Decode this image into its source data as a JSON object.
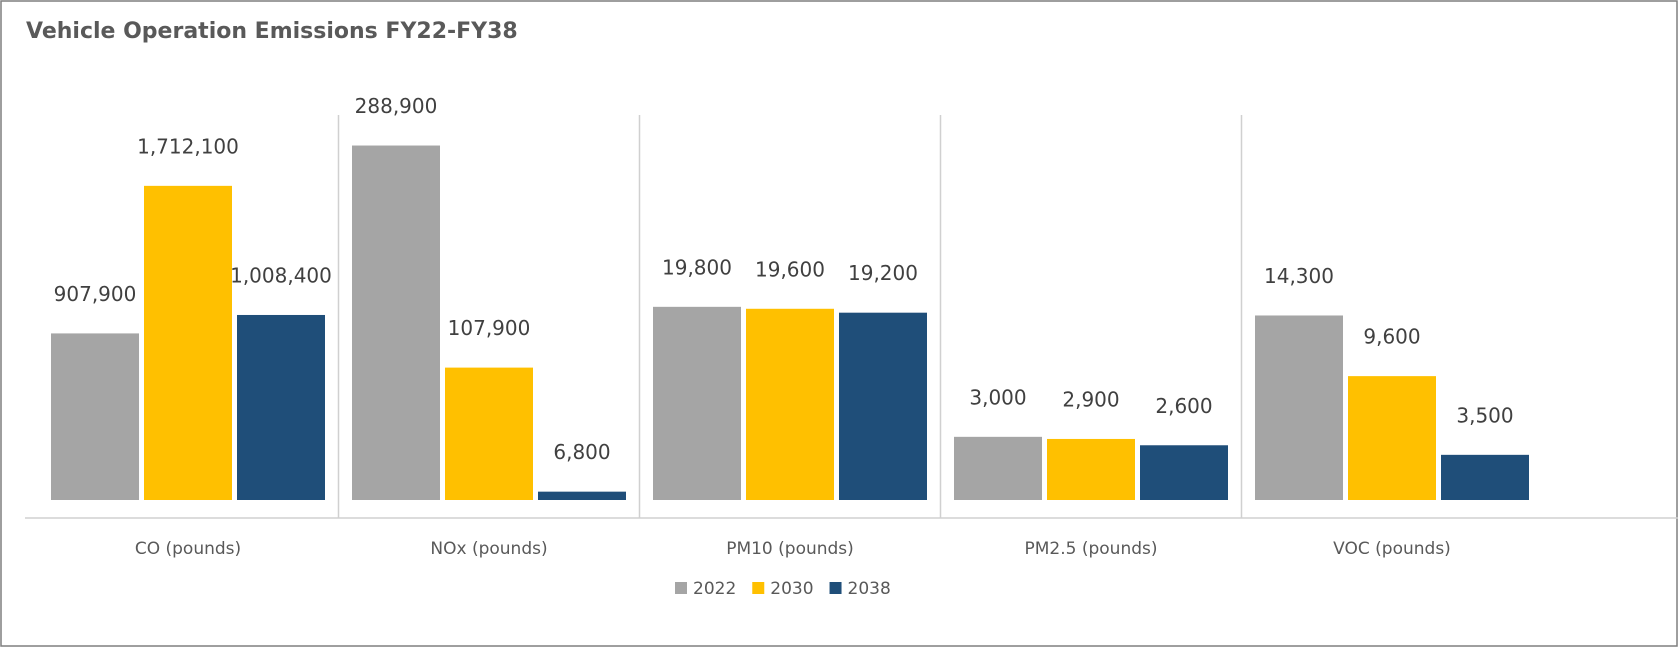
{
  "title": "Vehicle Operation Emissions FY22-FY38",
  "legend": [
    {
      "name": "2022",
      "color": "#a5a5a5"
    },
    {
      "name": "2030",
      "color": "#ffc000"
    },
    {
      "name": "2038",
      "color": "#1f4e79"
    }
  ],
  "chart_data": [
    {
      "type": "bar",
      "category": "CO (pounds)",
      "ylim": [
        0,
        2180000
      ],
      "values": [
        907900,
        1712100,
        1008400
      ],
      "value_labels": [
        "907,900",
        "1,712,100",
        "1,008,400"
      ]
    },
    {
      "type": "bar",
      "category": "NOx (pounds)",
      "ylim": [
        0,
        326000
      ],
      "values": [
        288900,
        107900,
        6800
      ],
      "value_labels": [
        "288,900",
        "107,900",
        "6,800"
      ]
    },
    {
      "type": "bar",
      "category": "PM10 (pounds)",
      "ylim": [
        0,
        41000
      ],
      "values": [
        19800,
        19600,
        19200
      ],
      "value_labels": [
        "19,800",
        "19,600",
        "19,200"
      ]
    },
    {
      "type": "bar",
      "category": "PM2.5 (pounds)",
      "ylim": [
        0,
        19000
      ],
      "values": [
        3000,
        2900,
        2600
      ],
      "value_labels": [
        "3,000",
        "2,900",
        "2,600"
      ]
    },
    {
      "type": "bar",
      "category": "VOC (pounds)",
      "ylim": [
        0,
        31000
      ],
      "values": [
        14300,
        9600,
        3500
      ],
      "value_labels": [
        "14,300",
        "9,600",
        "3,500"
      ]
    }
  ]
}
